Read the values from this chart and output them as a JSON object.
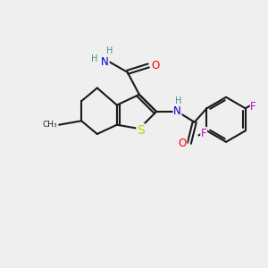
{
  "background_color": "#efefef",
  "bond_color": "#1a1a1a",
  "atom_colors": {
    "S": "#cccc00",
    "O": "#ff0000",
    "N": "#0000cd",
    "H": "#4a9090",
    "F": "#cc00cc",
    "C": "#1a1a1a"
  },
  "font_size_atoms": 8.5,
  "figsize": [
    3.0,
    3.0
  ],
  "dpi": 100
}
